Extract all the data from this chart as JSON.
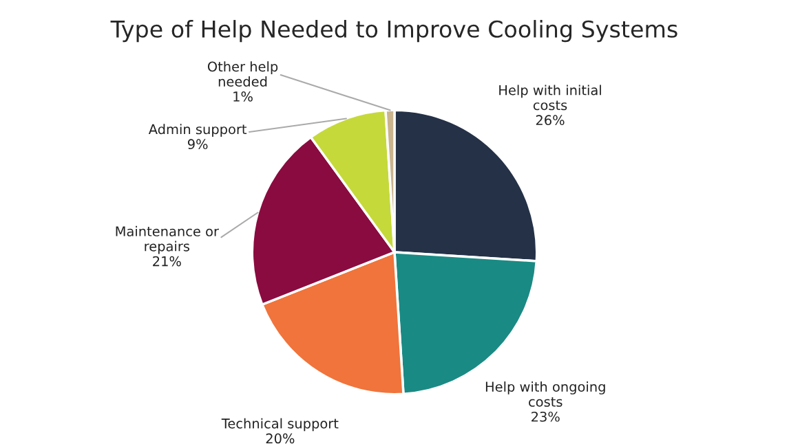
{
  "chart_data": {
    "type": "pie",
    "title": "Type of Help Needed to Improve Cooling Systems",
    "categories": [
      "Help with initial\ncosts",
      "Help with ongoing\ncosts",
      "Technical support",
      "Maintenance or\nrepairs",
      "Admin support",
      "Other help\nneeded"
    ],
    "values": [
      26,
      23,
      20,
      21,
      9,
      1
    ],
    "value_labels": [
      "26%",
      "23%",
      "20%",
      "21%",
      "9%",
      "1%"
    ],
    "colors": [
      "#243147",
      "#1a8a84",
      "#f0743b",
      "#8a0b3f",
      "#c5d93a",
      "#c9b48e"
    ]
  }
}
